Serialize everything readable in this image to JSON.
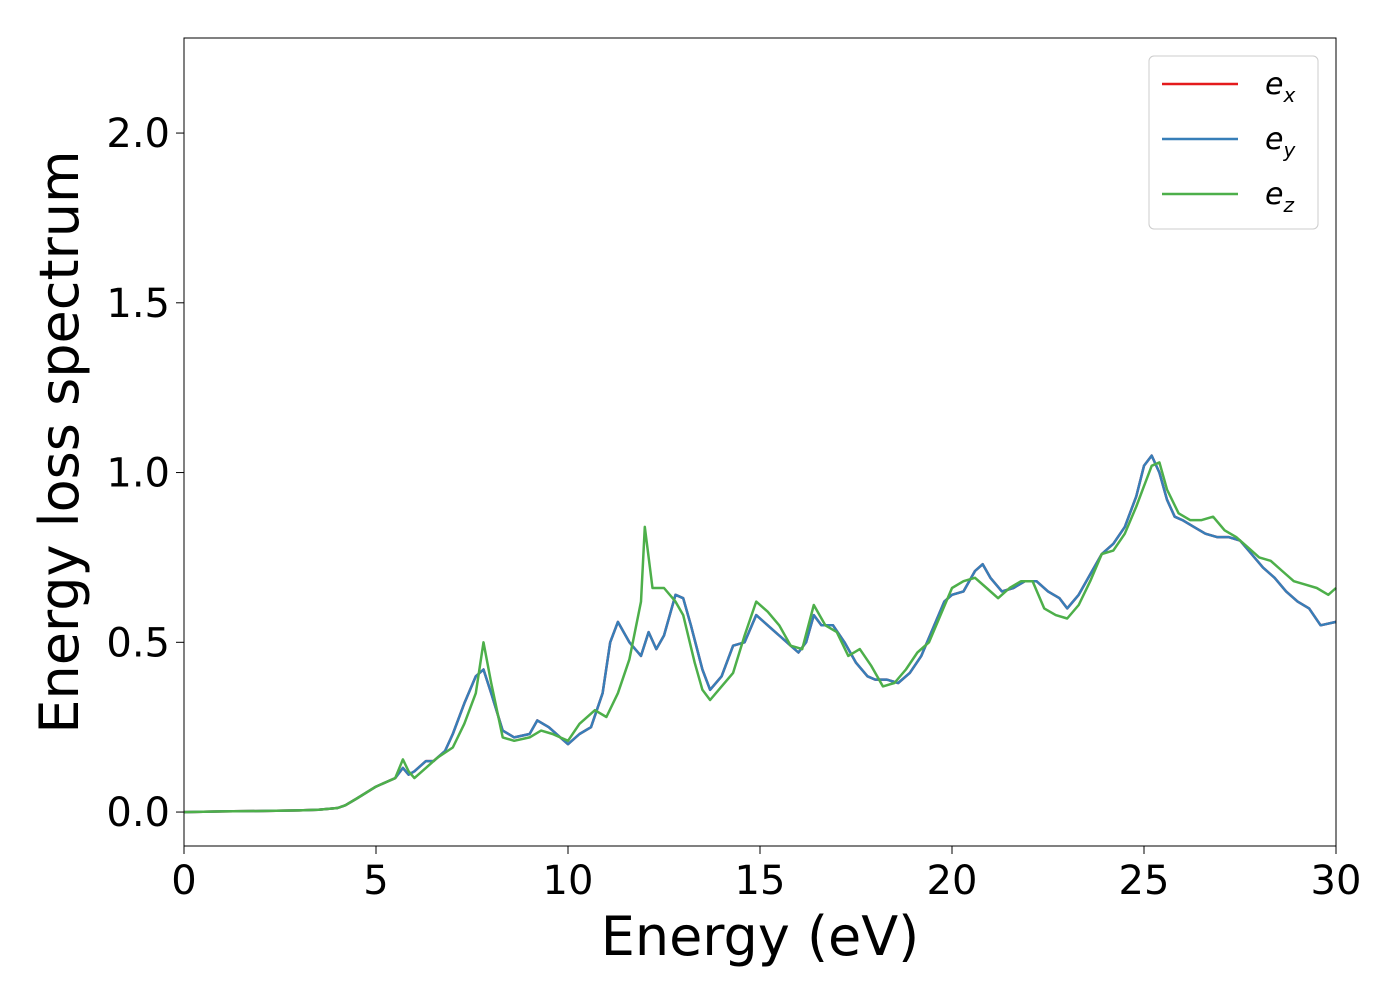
{
  "chart_data": {
    "type": "line",
    "title": "",
    "xlabel": "Energy (eV)",
    "ylabel": "Energy loss spectrum",
    "xlim": [
      0,
      30
    ],
    "ylim": [
      -0.1,
      2.28
    ],
    "xticks": [
      0,
      5,
      10,
      15,
      20,
      25,
      30
    ],
    "xtick_labels": [
      "0",
      "5",
      "10",
      "15",
      "20",
      "25",
      "30"
    ],
    "yticks": [
      0.0,
      0.5,
      1.0,
      1.5,
      2.0
    ],
    "ytick_labels": [
      "0.0",
      "0.5",
      "1.0",
      "1.5",
      "2.0"
    ],
    "grid": false,
    "legend_position": "top-right",
    "series": [
      {
        "name": "e_x",
        "legend_base": "e",
        "legend_sub": "x",
        "color": "#e41a1c",
        "x": [
          0,
          1,
          2,
          3,
          3.5,
          4,
          4.2,
          4.5,
          5,
          5.5,
          5.7,
          5.85,
          6,
          6.3,
          6.5,
          6.8,
          7,
          7.3,
          7.6,
          7.8,
          8,
          8.3,
          8.6,
          9,
          9.2,
          9.5,
          9.8,
          10,
          10.3,
          10.6,
          10.9,
          11.1,
          11.3,
          11.6,
          11.9,
          12.1,
          12.3,
          12.5,
          12.8,
          13,
          13.2,
          13.5,
          13.7,
          14,
          14.3,
          14.6,
          14.9,
          15.2,
          15.5,
          15.8,
          16,
          16.2,
          16.4,
          16.6,
          16.9,
          17.2,
          17.5,
          17.8,
          18,
          18.3,
          18.6,
          18.9,
          19.2,
          19.5,
          19.8,
          20,
          20.3,
          20.6,
          20.8,
          21,
          21.3,
          21.6,
          21.9,
          22.2,
          22.5,
          22.8,
          23,
          23.3,
          23.6,
          23.9,
          24.2,
          24.5,
          24.8,
          25,
          25.2,
          25.4,
          25.6,
          25.8,
          26,
          26.3,
          26.6,
          26.9,
          27.2,
          27.5,
          27.8,
          28.1,
          28.4,
          28.7,
          29,
          29.3,
          29.6,
          30
        ],
        "values": [
          0.0,
          0.002,
          0.003,
          0.005,
          0.007,
          0.012,
          0.02,
          0.04,
          0.075,
          0.1,
          0.13,
          0.11,
          0.12,
          0.15,
          0.15,
          0.18,
          0.23,
          0.32,
          0.4,
          0.42,
          0.35,
          0.24,
          0.22,
          0.23,
          0.27,
          0.25,
          0.22,
          0.2,
          0.23,
          0.25,
          0.35,
          0.5,
          0.56,
          0.5,
          0.46,
          0.53,
          0.48,
          0.52,
          0.64,
          0.63,
          0.55,
          0.42,
          0.36,
          0.4,
          0.49,
          0.5,
          0.58,
          0.55,
          0.52,
          0.49,
          0.47,
          0.5,
          0.58,
          0.55,
          0.55,
          0.5,
          0.44,
          0.4,
          0.39,
          0.39,
          0.38,
          0.41,
          0.46,
          0.54,
          0.62,
          0.64,
          0.65,
          0.71,
          0.73,
          0.69,
          0.65,
          0.66,
          0.68,
          0.68,
          0.65,
          0.63,
          0.6,
          0.64,
          0.7,
          0.76,
          0.79,
          0.84,
          0.93,
          1.02,
          1.05,
          1.0,
          0.92,
          0.87,
          0.86,
          0.84,
          0.82,
          0.81,
          0.81,
          0.8,
          0.76,
          0.72,
          0.69,
          0.65,
          0.62,
          0.6,
          0.55,
          0.56
        ]
      },
      {
        "name": "e_y",
        "legend_base": "e",
        "legend_sub": "y",
        "color": "#377eb8",
        "x": [
          0,
          1,
          2,
          3,
          3.5,
          4,
          4.2,
          4.5,
          5,
          5.5,
          5.7,
          5.85,
          6,
          6.3,
          6.5,
          6.8,
          7,
          7.3,
          7.6,
          7.8,
          8,
          8.3,
          8.6,
          9,
          9.2,
          9.5,
          9.8,
          10,
          10.3,
          10.6,
          10.9,
          11.1,
          11.3,
          11.6,
          11.9,
          12.1,
          12.3,
          12.5,
          12.8,
          13,
          13.2,
          13.5,
          13.7,
          14,
          14.3,
          14.6,
          14.9,
          15.2,
          15.5,
          15.8,
          16,
          16.2,
          16.4,
          16.6,
          16.9,
          17.2,
          17.5,
          17.8,
          18,
          18.3,
          18.6,
          18.9,
          19.2,
          19.5,
          19.8,
          20,
          20.3,
          20.6,
          20.8,
          21,
          21.3,
          21.6,
          21.9,
          22.2,
          22.5,
          22.8,
          23,
          23.3,
          23.6,
          23.9,
          24.2,
          24.5,
          24.8,
          25,
          25.2,
          25.4,
          25.6,
          25.8,
          26,
          26.3,
          26.6,
          26.9,
          27.2,
          27.5,
          27.8,
          28.1,
          28.4,
          28.7,
          29,
          29.3,
          29.6,
          30
        ],
        "values": [
          0.0,
          0.002,
          0.003,
          0.005,
          0.007,
          0.012,
          0.02,
          0.04,
          0.075,
          0.1,
          0.13,
          0.11,
          0.12,
          0.15,
          0.15,
          0.18,
          0.23,
          0.32,
          0.4,
          0.42,
          0.35,
          0.24,
          0.22,
          0.23,
          0.27,
          0.25,
          0.22,
          0.2,
          0.23,
          0.25,
          0.35,
          0.5,
          0.56,
          0.5,
          0.46,
          0.53,
          0.48,
          0.52,
          0.64,
          0.63,
          0.55,
          0.42,
          0.36,
          0.4,
          0.49,
          0.5,
          0.58,
          0.55,
          0.52,
          0.49,
          0.47,
          0.5,
          0.58,
          0.55,
          0.55,
          0.5,
          0.44,
          0.4,
          0.39,
          0.39,
          0.38,
          0.41,
          0.46,
          0.54,
          0.62,
          0.64,
          0.65,
          0.71,
          0.73,
          0.69,
          0.65,
          0.66,
          0.68,
          0.68,
          0.65,
          0.63,
          0.6,
          0.64,
          0.7,
          0.76,
          0.79,
          0.84,
          0.93,
          1.02,
          1.05,
          1.0,
          0.92,
          0.87,
          0.86,
          0.84,
          0.82,
          0.81,
          0.81,
          0.8,
          0.76,
          0.72,
          0.69,
          0.65,
          0.62,
          0.6,
          0.55,
          0.56
        ]
      },
      {
        "name": "e_z",
        "legend_base": "e",
        "legend_sub": "z",
        "color": "#4daf4a",
        "x": [
          0,
          1,
          2,
          3,
          3.5,
          4,
          4.2,
          4.5,
          5,
          5.5,
          5.7,
          5.85,
          6,
          6.3,
          6.6,
          7,
          7.3,
          7.6,
          7.8,
          8,
          8.3,
          8.6,
          9,
          9.3,
          9.6,
          10,
          10.3,
          10.7,
          11,
          11.3,
          11.6,
          11.9,
          12.0,
          12.2,
          12.5,
          12.8,
          13,
          13.3,
          13.5,
          13.7,
          14,
          14.3,
          14.6,
          14.9,
          15.2,
          15.5,
          15.8,
          16.1,
          16.4,
          16.7,
          17,
          17.3,
          17.6,
          17.9,
          18.2,
          18.5,
          18.8,
          19.1,
          19.4,
          19.7,
          20,
          20.3,
          20.6,
          20.9,
          21.2,
          21.5,
          21.8,
          22.1,
          22.4,
          22.7,
          23,
          23.3,
          23.6,
          23.9,
          24.2,
          24.5,
          24.8,
          25,
          25.2,
          25.4,
          25.6,
          25.9,
          26.2,
          26.5,
          26.8,
          27.1,
          27.4,
          27.7,
          28,
          28.3,
          28.6,
          28.9,
          29.2,
          29.5,
          29.8,
          30
        ],
        "values": [
          0.0,
          0.002,
          0.003,
          0.005,
          0.007,
          0.012,
          0.02,
          0.04,
          0.075,
          0.1,
          0.155,
          0.12,
          0.1,
          0.13,
          0.16,
          0.19,
          0.26,
          0.35,
          0.5,
          0.38,
          0.22,
          0.21,
          0.22,
          0.24,
          0.23,
          0.21,
          0.26,
          0.3,
          0.28,
          0.35,
          0.45,
          0.62,
          0.84,
          0.66,
          0.66,
          0.62,
          0.58,
          0.44,
          0.36,
          0.33,
          0.37,
          0.41,
          0.52,
          0.62,
          0.59,
          0.55,
          0.49,
          0.48,
          0.61,
          0.55,
          0.53,
          0.46,
          0.48,
          0.43,
          0.37,
          0.38,
          0.42,
          0.47,
          0.5,
          0.58,
          0.66,
          0.68,
          0.69,
          0.66,
          0.63,
          0.66,
          0.68,
          0.68,
          0.6,
          0.58,
          0.57,
          0.61,
          0.68,
          0.76,
          0.77,
          0.82,
          0.9,
          0.96,
          1.02,
          1.03,
          0.95,
          0.88,
          0.86,
          0.86,
          0.87,
          0.83,
          0.81,
          0.78,
          0.75,
          0.74,
          0.71,
          0.68,
          0.67,
          0.66,
          0.64,
          0.66
        ]
      }
    ]
  }
}
